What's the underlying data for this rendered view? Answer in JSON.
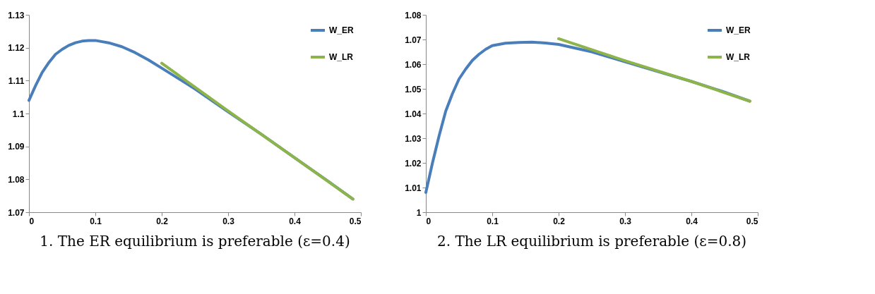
{
  "chart_data": [
    {
      "type": "line",
      "title": "1. The ER equilibrium is preferable (ε=0.4)",
      "xlim": [
        0,
        0.5
      ],
      "xticks": [
        0,
        0.1,
        0.2,
        0.3,
        0.4,
        0.5
      ],
      "ylim": [
        1.07,
        1.13
      ],
      "yticks": [
        1.07,
        1.08,
        1.09,
        1.1,
        1.11,
        1.12,
        1.13
      ],
      "grid": false,
      "legend": "top right",
      "marker": "none",
      "line_style": "solid",
      "series": [
        {
          "name": "W_ER",
          "color": "#4a7ebb",
          "x": [
            0,
            0.01,
            0.02,
            0.03,
            0.04,
            0.05,
            0.06,
            0.07,
            0.08,
            0.09,
            0.1,
            0.12,
            0.14,
            0.16,
            0.18,
            0.2,
            0.25,
            0.3,
            0.35,
            0.4,
            0.45,
            0.488
          ],
          "values": [
            1.104,
            1.1085,
            1.1125,
            1.1155,
            1.118,
            1.1195,
            1.1207,
            1.1215,
            1.122,
            1.1222,
            1.1222,
            1.1215,
            1.1203,
            1.1185,
            1.1163,
            1.1138,
            1.1075,
            1.1005,
            1.0937,
            1.0866,
            1.0795,
            1.074
          ]
        },
        {
          "name": "W_LR",
          "color": "#8cb44a",
          "x": [
            0.2,
            0.3,
            0.4,
            0.488
          ],
          "values": [
            1.1153,
            1.1008,
            1.0866,
            1.074
          ]
        }
      ]
    },
    {
      "type": "line",
      "title": "2. The LR equilibrium is preferable (ε=0.8)",
      "xlim": [
        0,
        0.5
      ],
      "xticks": [
        0,
        0.1,
        0.2,
        0.3,
        0.4,
        0.5
      ],
      "ylim": [
        1,
        1.08
      ],
      "yticks": [
        1,
        1.01,
        1.02,
        1.03,
        1.04,
        1.05,
        1.06,
        1.07,
        1.08
      ],
      "grid": false,
      "legend": "top right",
      "marker": "none",
      "line_style": "solid",
      "series": [
        {
          "name": "W_ER",
          "color": "#4a7ebb",
          "x": [
            0,
            0.01,
            0.02,
            0.03,
            0.04,
            0.05,
            0.06,
            0.07,
            0.08,
            0.09,
            0.1,
            0.12,
            0.14,
            0.16,
            0.18,
            0.2,
            0.25,
            0.3,
            0.35,
            0.4,
            0.45,
            0.488
          ],
          "values": [
            1.008,
            1.02,
            1.031,
            1.041,
            1.048,
            1.054,
            1.058,
            1.0615,
            1.064,
            1.066,
            1.0675,
            1.0685,
            1.0688,
            1.0689,
            1.0686,
            1.068,
            1.065,
            1.061,
            1.057,
            1.053,
            1.0487,
            1.045
          ]
        },
        {
          "name": "W_LR",
          "color": "#8cb44a",
          "x": [
            0.2,
            0.3,
            0.4,
            0.488
          ],
          "values": [
            1.0703,
            1.0614,
            1.053,
            1.045
          ]
        }
      ]
    }
  ]
}
